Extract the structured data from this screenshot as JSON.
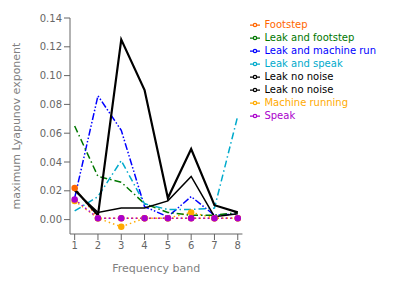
{
  "chart_data": {
    "type": "line",
    "xlabel": "Frequency band",
    "ylabel": "maximum Lyapunov exponent",
    "x": [
      1,
      2,
      3,
      4,
      5,
      6,
      7,
      8
    ],
    "series": [
      {
        "name": "Leak and machine run",
        "color": "#0000FF",
        "line_style": "dashdotdot",
        "values": [
          0.015,
          0.086,
          0.062,
          0.009,
          0.002,
          0.016,
          0.003,
          0.004
        ]
      },
      {
        "name": "Footstep",
        "color": "#FF6600",
        "line_style": "dotted",
        "marker": "circle",
        "values": [
          0.022,
          0.001,
          0.001,
          0.001,
          0.001,
          0.001,
          0.001,
          0.001
        ]
      },
      {
        "name": "Machine running",
        "color": "#FFAA00",
        "line_style": "dotted",
        "marker": "circle",
        "values": [
          0.013,
          0.001,
          -0.005,
          0.001,
          0.001,
          0.005,
          0.001,
          0.001
        ]
      },
      {
        "name": "Speak",
        "color": "#AA00CC",
        "line_style": "dotted",
        "marker": "circle",
        "values": [
          0.014,
          0.001,
          0.001,
          0.001,
          0.001,
          0.001,
          0.001,
          0.001
        ]
      },
      {
        "name": "Leak and footstep",
        "color": "#007700",
        "line_style": "dashdot",
        "values": [
          0.065,
          0.03,
          0.026,
          0.011,
          0.005,
          0.003,
          0.003,
          0.005
        ]
      },
      {
        "name": "Leak and speak",
        "color": "#00AACC",
        "line_style": "dashdot",
        "values": [
          0.006,
          0.016,
          0.041,
          0.011,
          0.007,
          0.007,
          0.008,
          0.072
        ]
      },
      {
        "name": "Leak no noise",
        "color": "#000000",
        "line_style": "solid",
        "values": [
          0.021,
          0.003,
          0.125,
          0.09,
          0.015,
          0.049,
          0.01,
          0.005
        ]
      },
      {
        "name": "Leak no noise",
        "color": "#000000",
        "line_style": "solid",
        "values": [
          0.02,
          0.005,
          0.008,
          0.008,
          0.013,
          0.03,
          0.002,
          0.004
        ]
      }
    ],
    "xlim": [
      0.8,
      8.2
    ],
    "xticks": [
      1,
      2,
      3,
      4,
      5,
      6,
      7,
      8
    ],
    "ylim": [
      -0.01,
      0.14
    ],
    "yticks": [
      {
        "value": 0,
        "label": "0.00"
      },
      0.02,
      0.04,
      0.06,
      0.08,
      {
        "value": 0.1,
        "label": "0.10"
      },
      0.12,
      0.14
    ],
    "grid": false,
    "legend": "upper right"
  }
}
